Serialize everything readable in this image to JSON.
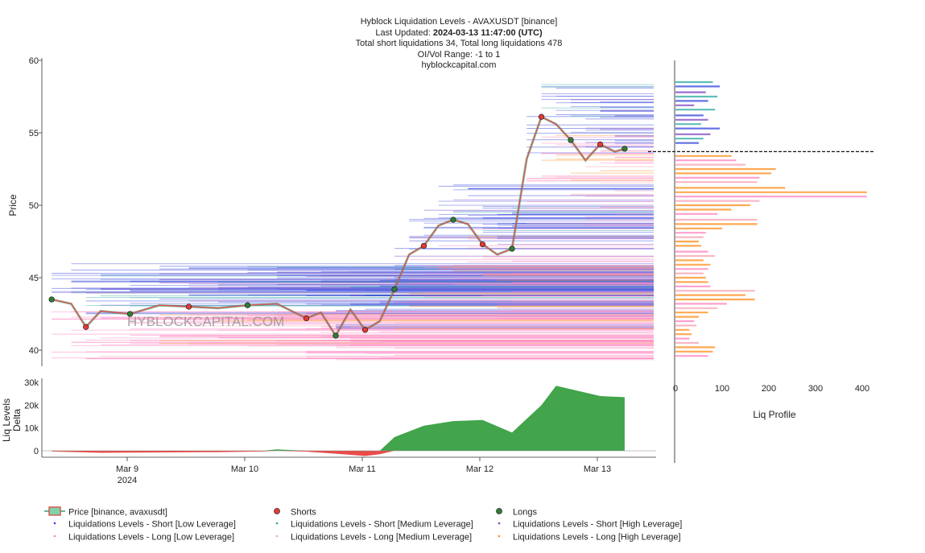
{
  "header": {
    "title": "Hyblock Liquidation Levels - AVAXUSDT [binance]",
    "updated_label": "Last Updated: ",
    "updated_value": "2024-03-13 11:47:00 (UTC)",
    "totals": "Total short liquidations 34, Total long liquidations 478",
    "oi_range": "OI/Vol Range: -1 to 1",
    "site": "hyblockcapital.com"
  },
  "watermark": "HYBLOCKCAPITAL.COM",
  "colors": {
    "price_line": "#d9534f",
    "price_fill": "#3a9e6f",
    "shorts_dot": "#e53935",
    "longs_dot": "#2e7d32",
    "short_low": "#3344dd",
    "short_med": "#2aa8a0",
    "short_high": "#7b3fbf",
    "long_low": "#ff7fbf",
    "long_med": "#f5a0b0",
    "long_high": "#ff8c1a",
    "delta_pos": "#2e9a37",
    "delta_neg": "#e53935"
  },
  "chart_data": [
    {
      "type": "line",
      "name": "price",
      "ylabel": "Price",
      "ylim": [
        39,
        60
      ],
      "yticks": [
        40,
        45,
        50,
        55,
        60
      ],
      "xlim_days": [
        "2024-03-08 12:00",
        "2024-03-13 12:00"
      ],
      "xticks": [
        "Mar 9",
        "Mar 10",
        "Mar 11",
        "Mar 12",
        "Mar 13"
      ],
      "xtick_year": "2024",
      "current_price": 53.7,
      "series": [
        {
          "name": "Price [binance, avaxusdt]",
          "x": [
            "2024-03-08 14:00",
            "2024-03-08 18:00",
            "2024-03-08 21:00",
            "2024-03-09 00:00",
            "2024-03-09 06:00",
            "2024-03-09 12:00",
            "2024-03-09 18:00",
            "2024-03-10 00:00",
            "2024-03-10 06:00",
            "2024-03-10 12:00",
            "2024-03-10 18:00",
            "2024-03-10 21:00",
            "2024-03-11 00:00",
            "2024-03-11 03:00",
            "2024-03-11 06:00",
            "2024-03-11 09:00",
            "2024-03-11 12:00",
            "2024-03-11 15:00",
            "2024-03-11 18:00",
            "2024-03-11 21:00",
            "2024-03-12 00:00",
            "2024-03-12 03:00",
            "2024-03-12 06:00",
            "2024-03-12 09:00",
            "2024-03-12 12:00",
            "2024-03-12 15:00",
            "2024-03-12 18:00",
            "2024-03-12 21:00",
            "2024-03-13 00:00",
            "2024-03-13 03:00",
            "2024-03-13 06:00",
            "2024-03-13 09:00",
            "2024-03-13 11:00"
          ],
          "values": [
            43.5,
            43.2,
            41.6,
            42.7,
            42.5,
            43.1,
            43.0,
            42.9,
            43.1,
            43.2,
            42.2,
            42.6,
            41.0,
            42.8,
            41.4,
            42.0,
            44.2,
            46.6,
            47.2,
            48.6,
            49.0,
            48.7,
            47.3,
            46.6,
            47.0,
            53.2,
            56.1,
            55.6,
            54.5,
            53.1,
            54.2,
            53.7,
            53.9
          ]
        }
      ]
    },
    {
      "type": "area",
      "name": "delta",
      "ylabel": "Liq Levels Delta",
      "ylim": [
        -3000,
        30000
      ],
      "yticks": [
        0,
        10000,
        20000,
        30000
      ],
      "ytick_labels": [
        "0",
        "10k",
        "20k",
        "30k"
      ],
      "x": [
        "2024-03-08 14:00",
        "2024-03-09 00:00",
        "2024-03-10 00:00",
        "2024-03-10 09:00",
        "2024-03-10 12:00",
        "2024-03-10 18:00",
        "2024-03-11 00:00",
        "2024-03-11 06:00",
        "2024-03-11 09:00",
        "2024-03-11 12:00",
        "2024-03-11 18:00",
        "2024-03-12 00:00",
        "2024-03-12 06:00",
        "2024-03-12 12:00",
        "2024-03-12 18:00",
        "2024-03-12 21:00",
        "2024-03-13 00:00",
        "2024-03-13 06:00",
        "2024-03-13 11:00"
      ],
      "values": [
        -300,
        -900,
        -600,
        -300,
        600,
        -400,
        -1300,
        -2300,
        -1500,
        6000,
        11000,
        13000,
        13500,
        8000,
        20000,
        28500,
        27000,
        24000,
        23500
      ]
    },
    {
      "type": "bar",
      "name": "profile",
      "orientation": "horizontal",
      "xlabel": "Liq Profile",
      "xlim": [
        0,
        430
      ],
      "xticks": [
        0,
        100,
        200,
        300,
        400
      ],
      "series": [
        {
          "name": "Short",
          "levels": [
            58.5,
            58.2,
            57.8,
            57.5,
            57.2,
            56.9,
            56.6,
            56.2,
            55.9,
            55.6,
            55.3,
            54.9,
            54.6,
            54.3
          ],
          "values": [
            80,
            95,
            65,
            90,
            70,
            40,
            85,
            60,
            70,
            55,
            95,
            75,
            60,
            50
          ]
        },
        {
          "name": "Long",
          "levels": [
            53.4,
            53.1,
            52.8,
            52.5,
            52.2,
            51.9,
            51.6,
            51.2,
            50.9,
            50.6,
            50.3,
            50.0,
            49.7,
            49.4,
            49.0,
            48.7,
            48.4,
            48.1,
            47.8,
            47.5,
            47.2,
            46.8,
            46.5,
            46.2,
            45.9,
            45.6,
            45.3,
            45.0,
            44.7,
            44.4,
            44.1,
            43.8,
            43.5,
            43.2,
            42.9,
            42.6,
            42.3,
            42.0,
            41.7,
            41.4,
            41.1,
            40.8,
            40.5,
            40.2,
            39.9,
            39.6
          ],
          "values": [
            120,
            130,
            150,
            215,
            205,
            180,
            175,
            235,
            410,
            410,
            180,
            160,
            120,
            90,
            175,
            175,
            100,
            65,
            60,
            50,
            55,
            70,
            85,
            60,
            75,
            70,
            60,
            65,
            70,
            75,
            170,
            150,
            170,
            110,
            90,
            70,
            50,
            40,
            45,
            30,
            35,
            30,
            50,
            85,
            80,
            70
          ]
        }
      ]
    }
  ],
  "legend": {
    "price": "Price [binance, avaxusdt]",
    "shorts": "Shorts",
    "longs": "Longs",
    "short_low": "Liquidations Levels - Short [Low Leverage]",
    "long_low": "Liquidations Levels - Long [Low Leverage]",
    "short_med": "Liquidations Levels - Short [Medium Leverage]",
    "long_med": "Liquidations Levels - Long [Medium Leverage]",
    "short_high": "Liquidations Levels - Short [High Leverage]",
    "long_high": "Liquidations Levels - Long [High Leverage]"
  }
}
